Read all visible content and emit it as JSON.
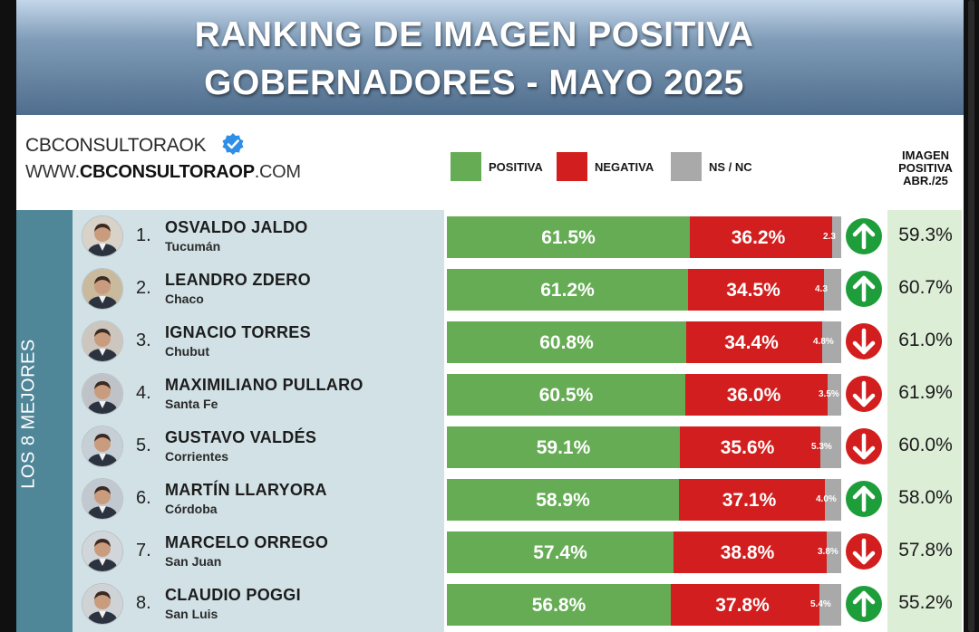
{
  "header": {
    "title_line1": "RANKING DE IMAGEN POSITIVA",
    "title_line2": "GOBERNADORES - MAYO 2025"
  },
  "brand": {
    "handle": "CBCONSULTORAOK",
    "url_prefix": "WWW.",
    "url_bold": "CBCONSULTORAOP",
    "url_suffix": ".COM"
  },
  "legend": {
    "positive": "POSITIVA",
    "negative": "NEGATIVA",
    "nsnc": "NS / NC"
  },
  "ip_header": {
    "line1": "IMAGEN",
    "line2": "POSITIVA",
    "line3": "ABR./25"
  },
  "sidebar_label": "LOS 8 MEJORES",
  "colors": {
    "positive": "#66ac55",
    "negative": "#d21e1e",
    "nsnc": "#a9a9a9",
    "arrow_up": "#1e9e3a",
    "arrow_down": "#d21e1e"
  },
  "chart_data": {
    "type": "bar",
    "orientation": "horizontal",
    "stacked": true,
    "title": "RANKING DE IMAGEN POSITIVA GOBERNADORES - MAYO 2025",
    "categories": [
      "OSVALDO JALDO",
      "LEANDRO ZDERO",
      "IGNACIO TORRES",
      "MAXIMILIANO PULLARO",
      "GUSTAVO VALDÉS",
      "MARTÍN LLARYORA",
      "MARCELO ORREGO",
      "CLAUDIO POGGI"
    ],
    "series": [
      {
        "name": "POSITIVA",
        "values": [
          61.5,
          61.2,
          60.8,
          60.5,
          59.1,
          58.9,
          57.4,
          56.8
        ]
      },
      {
        "name": "NEGATIVA",
        "values": [
          36.2,
          34.5,
          34.4,
          36.0,
          35.6,
          37.1,
          38.8,
          37.8
        ]
      },
      {
        "name": "NS / NC",
        "values": [
          2.3,
          4.3,
          4.8,
          3.5,
          5.3,
          4.0,
          3.8,
          5.4
        ]
      }
    ],
    "comparison_label": "IMAGEN POSITIVA ABR./25",
    "comparison_values": [
      59.3,
      60.7,
      61.0,
      61.9,
      60.0,
      58.0,
      57.8,
      55.2
    ],
    "legend": "top"
  },
  "rows": [
    {
      "rank": "1.",
      "name": "OSVALDO JALDO",
      "province": "Tucumán",
      "pos": 61.5,
      "neg": 36.2,
      "ns": 2.3,
      "pos_label": "61.5%",
      "neg_label": "36.2%",
      "ns_label": "2.3",
      "trend": "up",
      "trend_icon": "arrow-up-icon",
      "prev": "59.3%"
    },
    {
      "rank": "2.",
      "name": "LEANDRO ZDERO",
      "province": "Chaco",
      "pos": 61.2,
      "neg": 34.5,
      "ns": 4.3,
      "pos_label": "61.2%",
      "neg_label": "34.5%",
      "ns_label": "4.3",
      "trend": "up",
      "trend_icon": "arrow-up-icon",
      "prev": "60.7%"
    },
    {
      "rank": "3.",
      "name": "IGNACIO TORRES",
      "province": "Chubut",
      "pos": 60.8,
      "neg": 34.4,
      "ns": 4.8,
      "pos_label": "60.8%",
      "neg_label": "34.4%",
      "ns_label": "4.8%",
      "trend": "down",
      "trend_icon": "arrow-down-icon",
      "prev": "61.0%"
    },
    {
      "rank": "4.",
      "name": "MAXIMILIANO PULLARO",
      "province": "Santa Fe",
      "pos": 60.5,
      "neg": 36.0,
      "ns": 3.5,
      "pos_label": "60.5%",
      "neg_label": "36.0%",
      "ns_label": "3.5%",
      "trend": "down",
      "trend_icon": "arrow-down-icon",
      "prev": "61.9%"
    },
    {
      "rank": "5.",
      "name": "GUSTAVO VALDÉS",
      "province": "Corrientes",
      "pos": 59.1,
      "neg": 35.6,
      "ns": 5.3,
      "pos_label": "59.1%",
      "neg_label": "35.6%",
      "ns_label": "5.3%",
      "trend": "down",
      "trend_icon": "arrow-down-icon",
      "prev": "60.0%"
    },
    {
      "rank": "6.",
      "name": "MARTÍN LLARYORA",
      "province": "Córdoba",
      "pos": 58.9,
      "neg": 37.1,
      "ns": 4.0,
      "pos_label": "58.9%",
      "neg_label": "37.1%",
      "ns_label": "4.0%",
      "trend": "up",
      "trend_icon": "arrow-up-icon",
      "prev": "58.0%"
    },
    {
      "rank": "7.",
      "name": "MARCELO ORREGO",
      "province": "San Juan",
      "pos": 57.4,
      "neg": 38.8,
      "ns": 3.8,
      "pos_label": "57.4%",
      "neg_label": "38.8%",
      "ns_label": "3.8%",
      "trend": "down",
      "trend_icon": "arrow-down-icon",
      "prev": "57.8%"
    },
    {
      "rank": "8.",
      "name": "CLAUDIO POGGI",
      "province": "San Luis",
      "pos": 56.8,
      "neg": 37.8,
      "ns": 5.4,
      "pos_label": "56.8%",
      "neg_label": "37.8%",
      "ns_label": "5.4%",
      "trend": "up",
      "trend_icon": "arrow-up-icon",
      "prev": "55.2%"
    }
  ]
}
